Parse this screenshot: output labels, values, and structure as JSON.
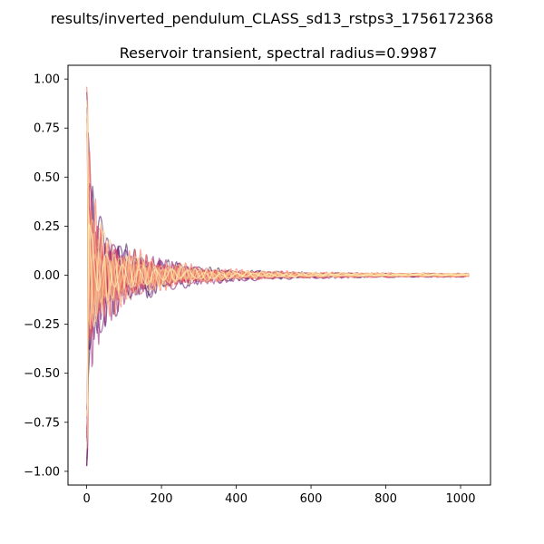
{
  "figure": {
    "suptitle": "results/inverted_pendulum_CLASS_sd13_rstps3_1756172368"
  },
  "chart_data": {
    "type": "line",
    "title": "Reservoir transient, spectral radius=0.9987",
    "xlabel": "",
    "ylabel": "",
    "xlim": [
      -50,
      1080
    ],
    "ylim": [
      -1.07,
      1.07
    ],
    "x_ticks": [
      0,
      200,
      400,
      600,
      800,
      1000
    ],
    "x_tick_labels": [
      "0",
      "200",
      "400",
      "600",
      "800",
      "1000"
    ],
    "y_ticks": [
      1.0,
      0.75,
      0.5,
      0.25,
      0.0,
      -0.25,
      -0.5,
      -0.75,
      -1.0
    ],
    "y_tick_labels": [
      "1.00",
      "0.75",
      "0.50",
      "0.25",
      "0.00",
      "−0.25",
      "−0.50",
      "−0.75",
      "−1.00"
    ],
    "grid": false,
    "legend": "none",
    "n_steps": 1024,
    "n_series": 28,
    "colormap": [
      "#1a1042",
      "#5a1670",
      "#8c2981",
      "#b73779",
      "#de4968",
      "#f7705c",
      "#fe9f6d",
      "#fecf92",
      "#fcfdbf"
    ],
    "series_alpha": 0.6,
    "envelope": {
      "initial_peak": 0.98,
      "decay_points": [
        {
          "x": 0,
          "y": 0.98
        },
        {
          "x": 10,
          "y": 0.6
        },
        {
          "x": 25,
          "y": 0.41
        },
        {
          "x": 50,
          "y": 0.27
        },
        {
          "x": 100,
          "y": 0.17
        },
        {
          "x": 200,
          "y": 0.09
        },
        {
          "x": 300,
          "y": 0.05
        },
        {
          "x": 400,
          "y": 0.03
        },
        {
          "x": 600,
          "y": 0.015
        },
        {
          "x": 800,
          "y": 0.01
        },
        {
          "x": 1023,
          "y": 0.007
        }
      ]
    }
  }
}
